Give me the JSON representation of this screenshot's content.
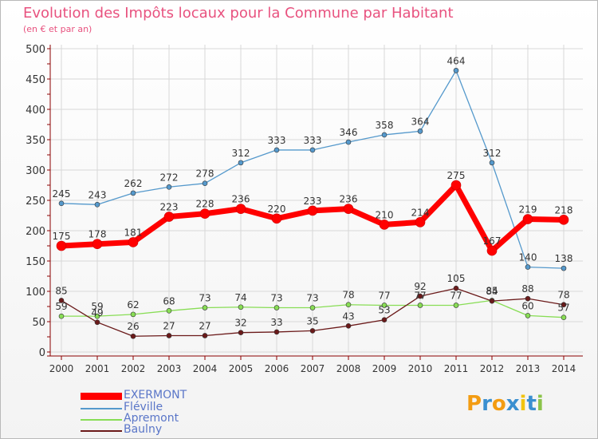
{
  "colors": {
    "title": "#e8527f",
    "axis": "#8b0000",
    "grid": "#d8d8d8",
    "label": "#333333",
    "legend_text": "#5a76c8"
  },
  "chart_data": {
    "type": "line",
    "title": "Evolution des Impôts locaux pour la Commune par Habitant",
    "subtitle": "(en € et par an)",
    "xlabel": "",
    "ylabel": "",
    "x": [
      "2000",
      "2001",
      "2002",
      "2003",
      "2004",
      "2005",
      "2006",
      "2007",
      "2008",
      "2009",
      "2010",
      "2011",
      "2012",
      "2013",
      "2014"
    ],
    "ylim": [
      0,
      500
    ],
    "yticks": [
      0,
      50,
      100,
      150,
      200,
      250,
      300,
      350,
      400,
      450,
      500
    ],
    "grid": true,
    "series": [
      {
        "name": "EXERMONT",
        "color": "#ff0000",
        "width": 7,
        "values": [
          175,
          178,
          181,
          223,
          228,
          236,
          220,
          233,
          236,
          210,
          214,
          275,
          167,
          219,
          218
        ]
      },
      {
        "name": "Fléville",
        "color": "#5599cc",
        "width": 1.3,
        "values": [
          245,
          243,
          262,
          272,
          278,
          312,
          333,
          333,
          346,
          358,
          364,
          464,
          312,
          140,
          138
        ]
      },
      {
        "name": "Apremont",
        "color": "#88dd55",
        "width": 1.3,
        "values": [
          59,
          59,
          62,
          68,
          73,
          74,
          73,
          73,
          78,
          77,
          77,
          77,
          85,
          60,
          57
        ]
      },
      {
        "name": "Baulny",
        "color": "#6b1a1a",
        "width": 1.3,
        "values": [
          85,
          49,
          26,
          27,
          27,
          32,
          33,
          35,
          43,
          53,
          92,
          105,
          84,
          88,
          78
        ]
      }
    ]
  },
  "legend": [
    {
      "label": "EXERMONT",
      "color": "#ff0000",
      "thick": 9
    },
    {
      "label": "Fléville",
      "color": "#5599cc",
      "thick": 2
    },
    {
      "label": "Apremont",
      "color": "#88dd55",
      "thick": 2
    },
    {
      "label": "Baulny",
      "color": "#6b1a1a",
      "thick": 2
    }
  ],
  "logo": {
    "text": "Proxiti"
  }
}
